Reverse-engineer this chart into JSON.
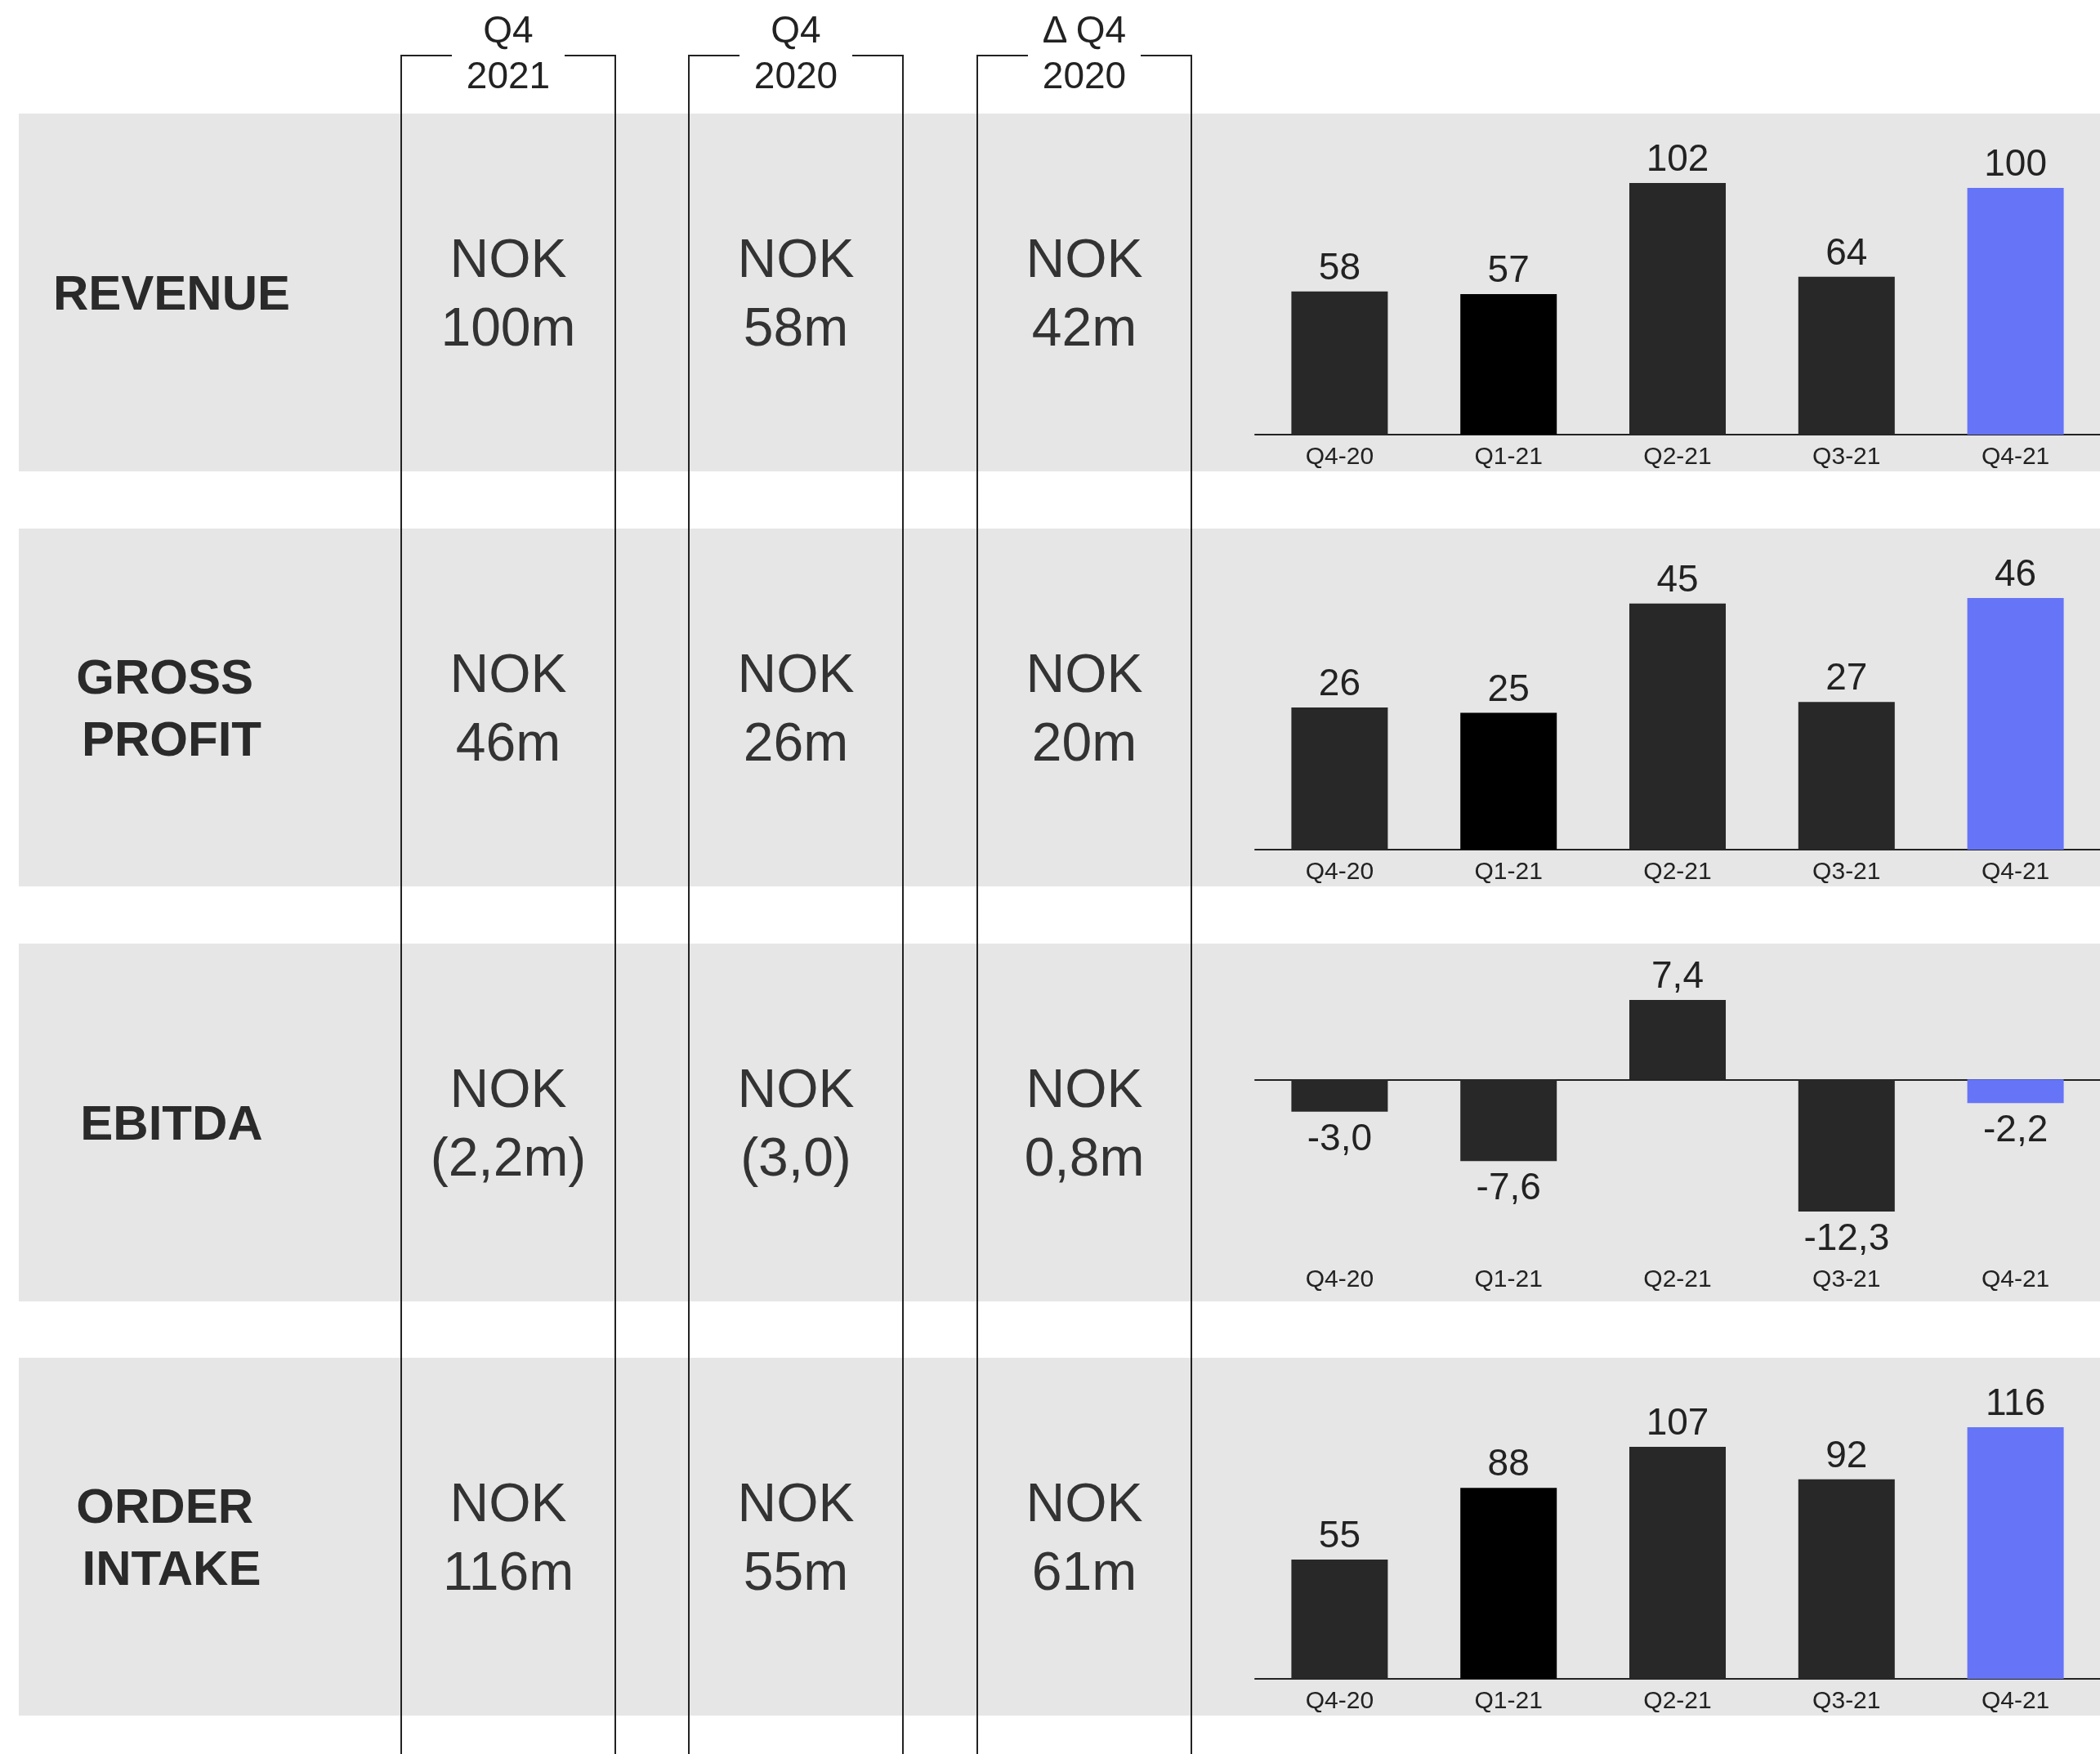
{
  "chart_data": [
    {
      "type": "other",
      "annotations": [
        "Q4 2021",
        "Q4 2020",
        "Δ Q4 2020"
      ]
    },
    {
      "type": "bar",
      "ylabel": "REVENUE",
      "annotations": [
        "NOK 100m",
        "NOK 58m",
        "NOK 42m"
      ],
      "categories": [
        "Q4-20",
        "Q1-21",
        "Q2-21",
        "Q3-21",
        "Q4-21"
      ],
      "values": [
        58,
        57,
        102,
        64,
        100
      ],
      "colors": [
        "#282828",
        "#000000",
        "#282828",
        "#282828",
        "#6674f7"
      ],
      "data_labels": true
    },
    {
      "type": "bar",
      "ylabel": "GROSS PROFIT",
      "annotations": [
        "NOK 46m",
        "NOK 26m",
        "NOK 20m"
      ],
      "categories": [
        "Q4-20",
        "Q1-21",
        "Q2-21",
        "Q3-21",
        "Q4-21"
      ],
      "values": [
        26,
        25,
        45,
        27,
        46
      ],
      "colors": [
        "#282828",
        "#000000",
        "#282828",
        "#282828",
        "#6674f7"
      ],
      "data_labels": true
    },
    {
      "type": "bar",
      "ylabel": "EBITDA",
      "annotations": [
        "NOK (2,2m)",
        "NOK (3,0)",
        "NOK 0,8m"
      ],
      "categories": [
        "Q4-20",
        "Q1-21",
        "Q2-21",
        "Q3-21",
        "Q4-21"
      ],
      "values": [
        -3.0,
        -7.6,
        7.4,
        -12.3,
        -2.2
      ],
      "value_labels": [
        "-3,0",
        "-7,6",
        "7,4",
        "-12,3",
        "-2,2"
      ],
      "colors": [
        "#282828",
        "#282828",
        "#282828",
        "#282828",
        "#6674f7"
      ]
    },
    {
      "type": "bar",
      "ylabel": "ORDER INTAKE",
      "annotations": [
        "NOK 116m",
        "NOK 55m",
        "NOK 61m"
      ],
      "categories": [
        "Q4-20",
        "Q1-21",
        "Q2-21",
        "Q3-21",
        "Q4-21"
      ],
      "values": [
        55,
        88,
        107,
        92,
        116
      ],
      "colors": [
        "#282828",
        "#000000",
        "#282828",
        "#282828",
        "#6674f7"
      ],
      "data_labels": true
    }
  ]
}
